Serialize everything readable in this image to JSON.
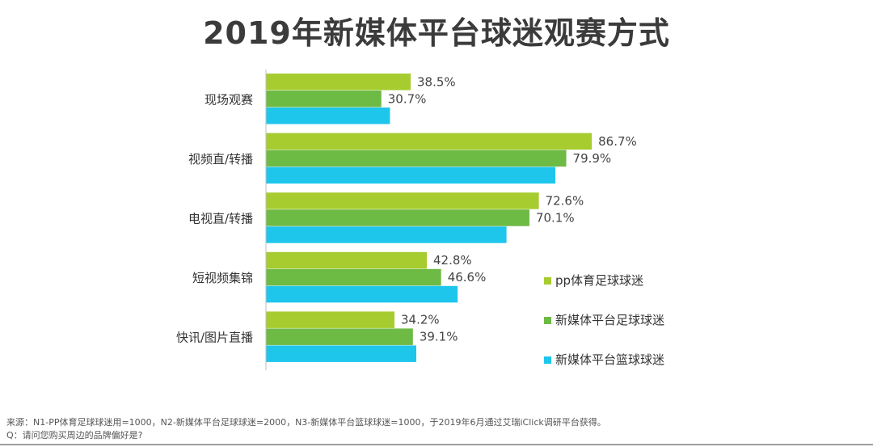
{
  "chart_data": {
    "type": "bar",
    "orientation": "horizontal",
    "title": "2019年新媒体平台球迷观赛方式",
    "categories": [
      "现场观赛",
      "视频直/转播",
      "电视直/转播",
      "短视频集锦",
      "快讯/图片直播"
    ],
    "series": [
      {
        "name": "pp体育足球球迷",
        "color": "#a6cc30",
        "values": [
          38.5,
          86.7,
          72.6,
          42.8,
          34.2
        ],
        "labels": [
          "38.5%",
          "86.7%",
          "72.6%",
          "42.8%",
          "34.2%"
        ]
      },
      {
        "name": "新媒体平台足球球迷",
        "color": "#6dba45",
        "values": [
          30.7,
          79.9,
          70.1,
          46.6,
          39.1
        ],
        "labels": [
          "30.7%",
          "79.9%",
          "70.1%",
          "46.6%",
          "39.1%"
        ]
      },
      {
        "name": "新媒体平台篮球球迷",
        "color": "#1ec6ec",
        "values": [
          33.0,
          77.0,
          64.0,
          51.0,
          40.0
        ],
        "labels": []
      }
    ],
    "xlim": [
      0,
      100
    ],
    "legend_position": "bottom-right",
    "grid": false
  },
  "footer": {
    "source": "来源：N1-PP体育足球球迷用=1000，N2-新媒体平台足球球迷=2000，N3-新媒体平台篮球球迷=1000，于2019年6月通过艾瑞iClick调研平台获得。",
    "question": "Q：请问您购买周边的品牌偏好是?"
  }
}
